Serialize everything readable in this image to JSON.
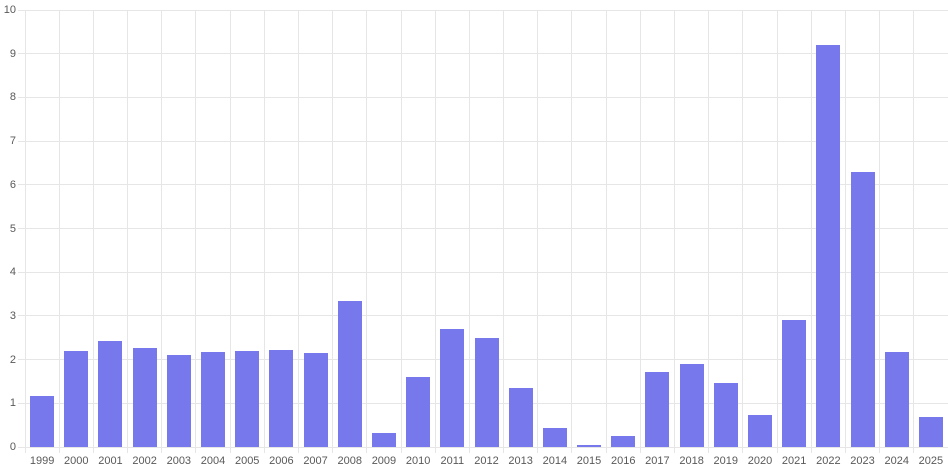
{
  "chart_data": {
    "type": "bar",
    "title": "",
    "xlabel": "",
    "ylabel": "",
    "categories": [
      "1999",
      "2000",
      "2001",
      "2002",
      "2003",
      "2004",
      "2005",
      "2006",
      "2007",
      "2008",
      "2009",
      "2010",
      "2011",
      "2012",
      "2013",
      "2014",
      "2015",
      "2016",
      "2017",
      "2018",
      "2019",
      "2020",
      "2021",
      "2022",
      "2023",
      "2024",
      "2025"
    ],
    "values": [
      1.17,
      2.19,
      2.42,
      2.27,
      2.11,
      2.18,
      2.2,
      2.21,
      2.16,
      3.33,
      0.31,
      1.61,
      2.71,
      2.49,
      1.35,
      0.44,
      0.05,
      0.26,
      1.71,
      1.89,
      1.47,
      0.73,
      2.91,
      9.2,
      6.29,
      2.18,
      0.69
    ],
    "ylim": [
      0,
      10
    ],
    "y_ticks": [
      0,
      1,
      2,
      3,
      4,
      5,
      6,
      7,
      8,
      9,
      10
    ],
    "grid": true,
    "legend": false,
    "colors": {
      "bar": "#7678ec",
      "grid": "#e6e6e6",
      "tick_label": "#595959",
      "background": "#ffffff"
    }
  }
}
